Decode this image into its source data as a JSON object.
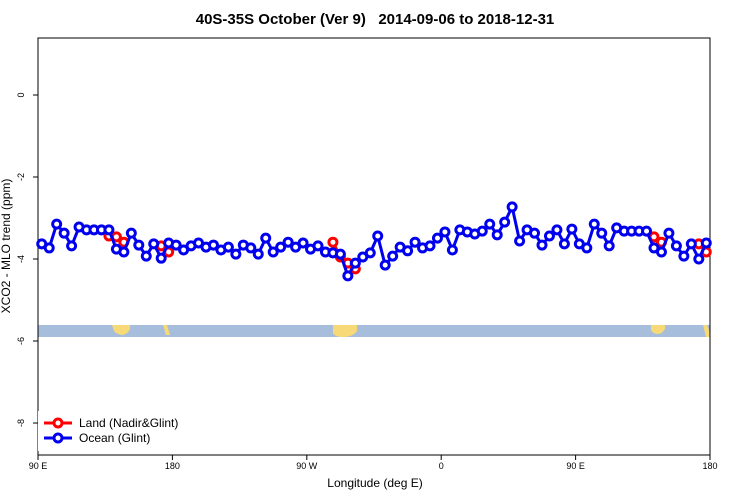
{
  "chart_data": {
    "type": "line",
    "title": "40S-35S October (Ver 9)   2014-09-06 to 2018-12-31",
    "x_label": "Longitude (deg E)",
    "y_label": "XCO2 - MLO trend (ppm)",
    "xlim": [
      90,
      540
    ],
    "ylim": [
      -8.78,
      1.39
    ],
    "xticks": [
      {
        "value": 90,
        "label": "90 E"
      },
      180,
      {
        "value": 270,
        "label": "90 W"
      },
      {
        "value": 360,
        "label": "0"
      },
      {
        "value": 450,
        "label": "90 E"
      },
      {
        "value": 540,
        "label": "180"
      }
    ],
    "yticks": [
      0,
      -2,
      -4,
      -6,
      -8
    ],
    "legend": "bottom-left",
    "x": [
      92.5,
      97.5,
      102.5,
      107.5,
      112.5,
      117.5,
      122.5,
      127.5,
      132.5,
      137.5,
      142.5,
      147.5,
      152.5,
      157.5,
      162.5,
      167.5,
      172.5,
      177.5,
      182.5,
      187.5,
      192.5,
      197.5,
      202.5,
      207.5,
      212.5,
      217.5,
      222.5,
      227.5,
      232.5,
      237.5,
      242.5,
      247.5,
      252.5,
      257.5,
      262.5,
      267.5,
      272.5,
      277.5,
      282.5,
      287.5,
      292.5,
      297.5,
      302.5,
      307.5,
      312.5,
      317.5,
      322.5,
      327.5,
      332.5,
      337.5,
      342.5,
      347.5,
      352.5,
      357.5,
      362.5,
      367.5,
      372.5,
      377.5,
      382.5,
      387.5,
      392.5,
      397.5,
      402.5,
      407.5,
      412.5,
      417.5,
      422.5,
      427.5,
      432.5,
      437.5,
      442.5,
      447.5,
      452.5,
      457.5,
      462.5,
      467.5,
      472.5,
      477.5,
      482.5,
      487.5,
      492.5,
      497.5,
      502.5,
      507.5,
      512.5,
      517.5,
      522.5,
      527.5,
      532.5,
      537.5
    ],
    "series": [
      {
        "name": "Land (Nadir&Glint)",
        "color": "#ff0000",
        "values": [
          null,
          null,
          null,
          null,
          null,
          null,
          null,
          null,
          null,
          -3.44,
          -3.46,
          -3.59,
          null,
          null,
          null,
          null,
          -3.68,
          -3.83,
          null,
          null,
          null,
          null,
          null,
          null,
          null,
          null,
          null,
          null,
          null,
          null,
          null,
          null,
          null,
          null,
          null,
          null,
          null,
          null,
          null,
          -3.59,
          -3.95,
          -4.1,
          -4.24,
          null,
          null,
          null,
          null,
          null,
          null,
          null,
          null,
          null,
          null,
          null,
          null,
          null,
          null,
          null,
          null,
          null,
          null,
          null,
          null,
          null,
          null,
          null,
          null,
          null,
          null,
          null,
          null,
          null,
          null,
          null,
          null,
          null,
          null,
          null,
          null,
          null,
          null,
          null,
          -3.46,
          -3.59,
          null,
          null,
          null,
          null,
          -3.63,
          -3.83
        ]
      },
      {
        "name": "Ocean (Glint)",
        "color": "#0000ee",
        "values": [
          -3.63,
          -3.73,
          -3.15,
          -3.37,
          -3.68,
          -3.22,
          -3.29,
          -3.29,
          -3.29,
          -3.29,
          -3.76,
          -3.83,
          -3.37,
          -3.66,
          -3.93,
          -3.63,
          -3.98,
          -3.61,
          -3.66,
          -3.78,
          -3.68,
          -3.61,
          -3.71,
          -3.66,
          -3.78,
          -3.71,
          -3.88,
          -3.66,
          -3.73,
          -3.88,
          -3.49,
          -3.83,
          -3.71,
          -3.59,
          -3.71,
          -3.61,
          -3.76,
          -3.68,
          -3.83,
          -3.85,
          -3.88,
          -4.41,
          -4.1,
          -3.95,
          -3.85,
          -3.44,
          -4.15,
          -3.93,
          -3.71,
          -3.8,
          -3.59,
          -3.73,
          -3.68,
          -3.49,
          -3.34,
          -3.78,
          -3.29,
          -3.34,
          -3.39,
          -3.32,
          -3.15,
          -3.41,
          -3.1,
          -2.73,
          -3.56,
          -3.29,
          -3.37,
          -3.66,
          -3.44,
          -3.29,
          -3.63,
          -3.27,
          -3.63,
          -3.73,
          -3.15,
          -3.37,
          -3.68,
          -3.24,
          -3.32,
          -3.32,
          -3.32,
          -3.32,
          -3.73,
          -3.83,
          -3.37,
          -3.68,
          -3.93,
          -3.63,
          -4.0,
          -3.61
        ]
      }
    ]
  }
}
